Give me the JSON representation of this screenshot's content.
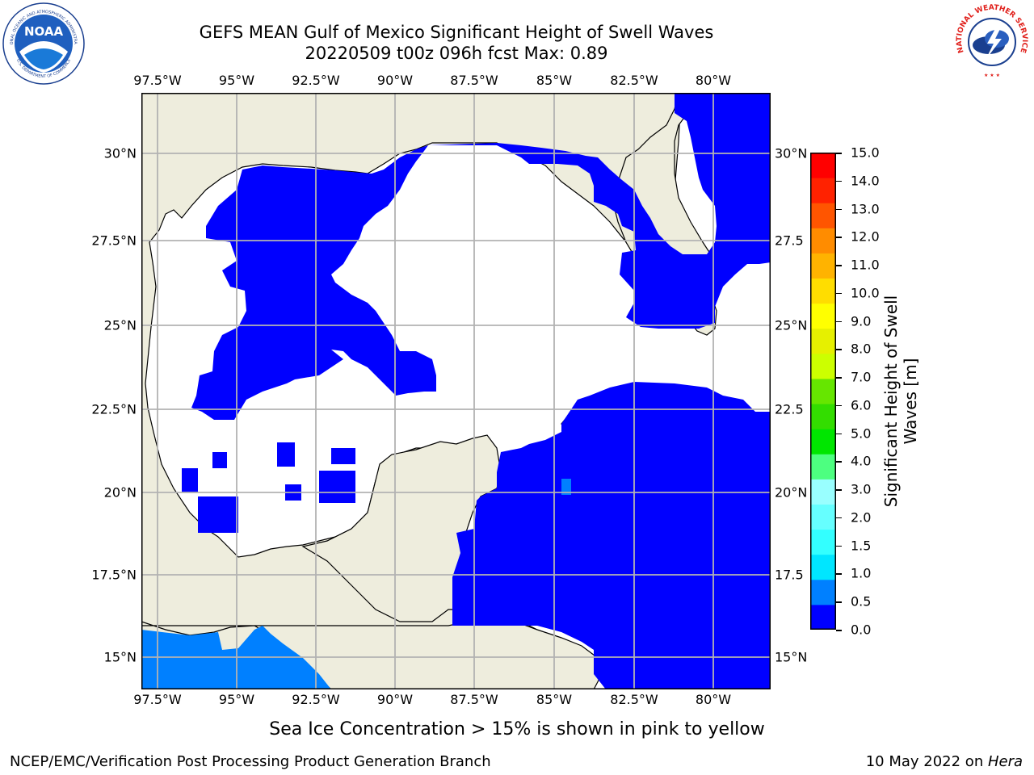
{
  "header": {
    "title_line1": "GEFS MEAN Gulf of Mexico Significant Height of Swell Waves",
    "title_line2": "20220509 t00z 096h fcst   Max: 0.89"
  },
  "logos": {
    "left": {
      "text": "NOAA",
      "ring_top": "NATIONAL OCEANIC AND ATMOSPHERIC ADMINISTRATION",
      "ring_bottom": "U.S. DEPARTMENT OF COMMERCE"
    },
    "right": {
      "ring_text": "NATIONAL WEATHER SERVICE"
    }
  },
  "map": {
    "lon_labels": [
      "97.5°W",
      "95°W",
      "92.5°W",
      "90°W",
      "87.5°W",
      "85°W",
      "82.5°W",
      "80°W"
    ],
    "lat_labels_left": [
      "30°N",
      "27.5°N",
      "25°N",
      "22.5°N",
      "20°N",
      "17.5°N",
      "15°N"
    ],
    "lat_labels_right": [
      "30°N",
      "27.5",
      "25°N",
      "22.5",
      "20°N",
      "17.5",
      "15°N"
    ],
    "colors": {
      "land": "#eeeddd",
      "water_low": "#0000ff",
      "water_mid": "#0080ff",
      "grid": "#b2b2b2",
      "missing": "#ffffff"
    }
  },
  "colorbar": {
    "label": "Significant Height of Swell Waves [m]",
    "ticks": [
      "15.0",
      "14.0",
      "13.0",
      "12.0",
      "11.0",
      "10.0",
      "9.0",
      "8.0",
      "7.0",
      "6.0",
      "5.0",
      "4.0",
      "3.0",
      "2.0",
      "1.5",
      "1.0",
      "0.5",
      "0.0"
    ],
    "bands": [
      "#0000ff",
      "#0080ff",
      "#00e6ff",
      "#33ffff",
      "#66ffff",
      "#99ffff",
      "#4dff80",
      "#00e600",
      "#33dd00",
      "#66e600",
      "#ccff00",
      "#e6f000",
      "#ffff00",
      "#ffdd00",
      "#ffb300",
      "#ff8c00",
      "#ff5500",
      "#ff2200",
      "#ff0000"
    ]
  },
  "caption": "Sea Ice Concentration > 15% is shown in pink to yellow",
  "footer": {
    "left": "NCEP/EMC/Verification Post Processing Product Generation Branch",
    "right_prefix": "10 May 2022 on ",
    "right_italic": "Hera"
  }
}
